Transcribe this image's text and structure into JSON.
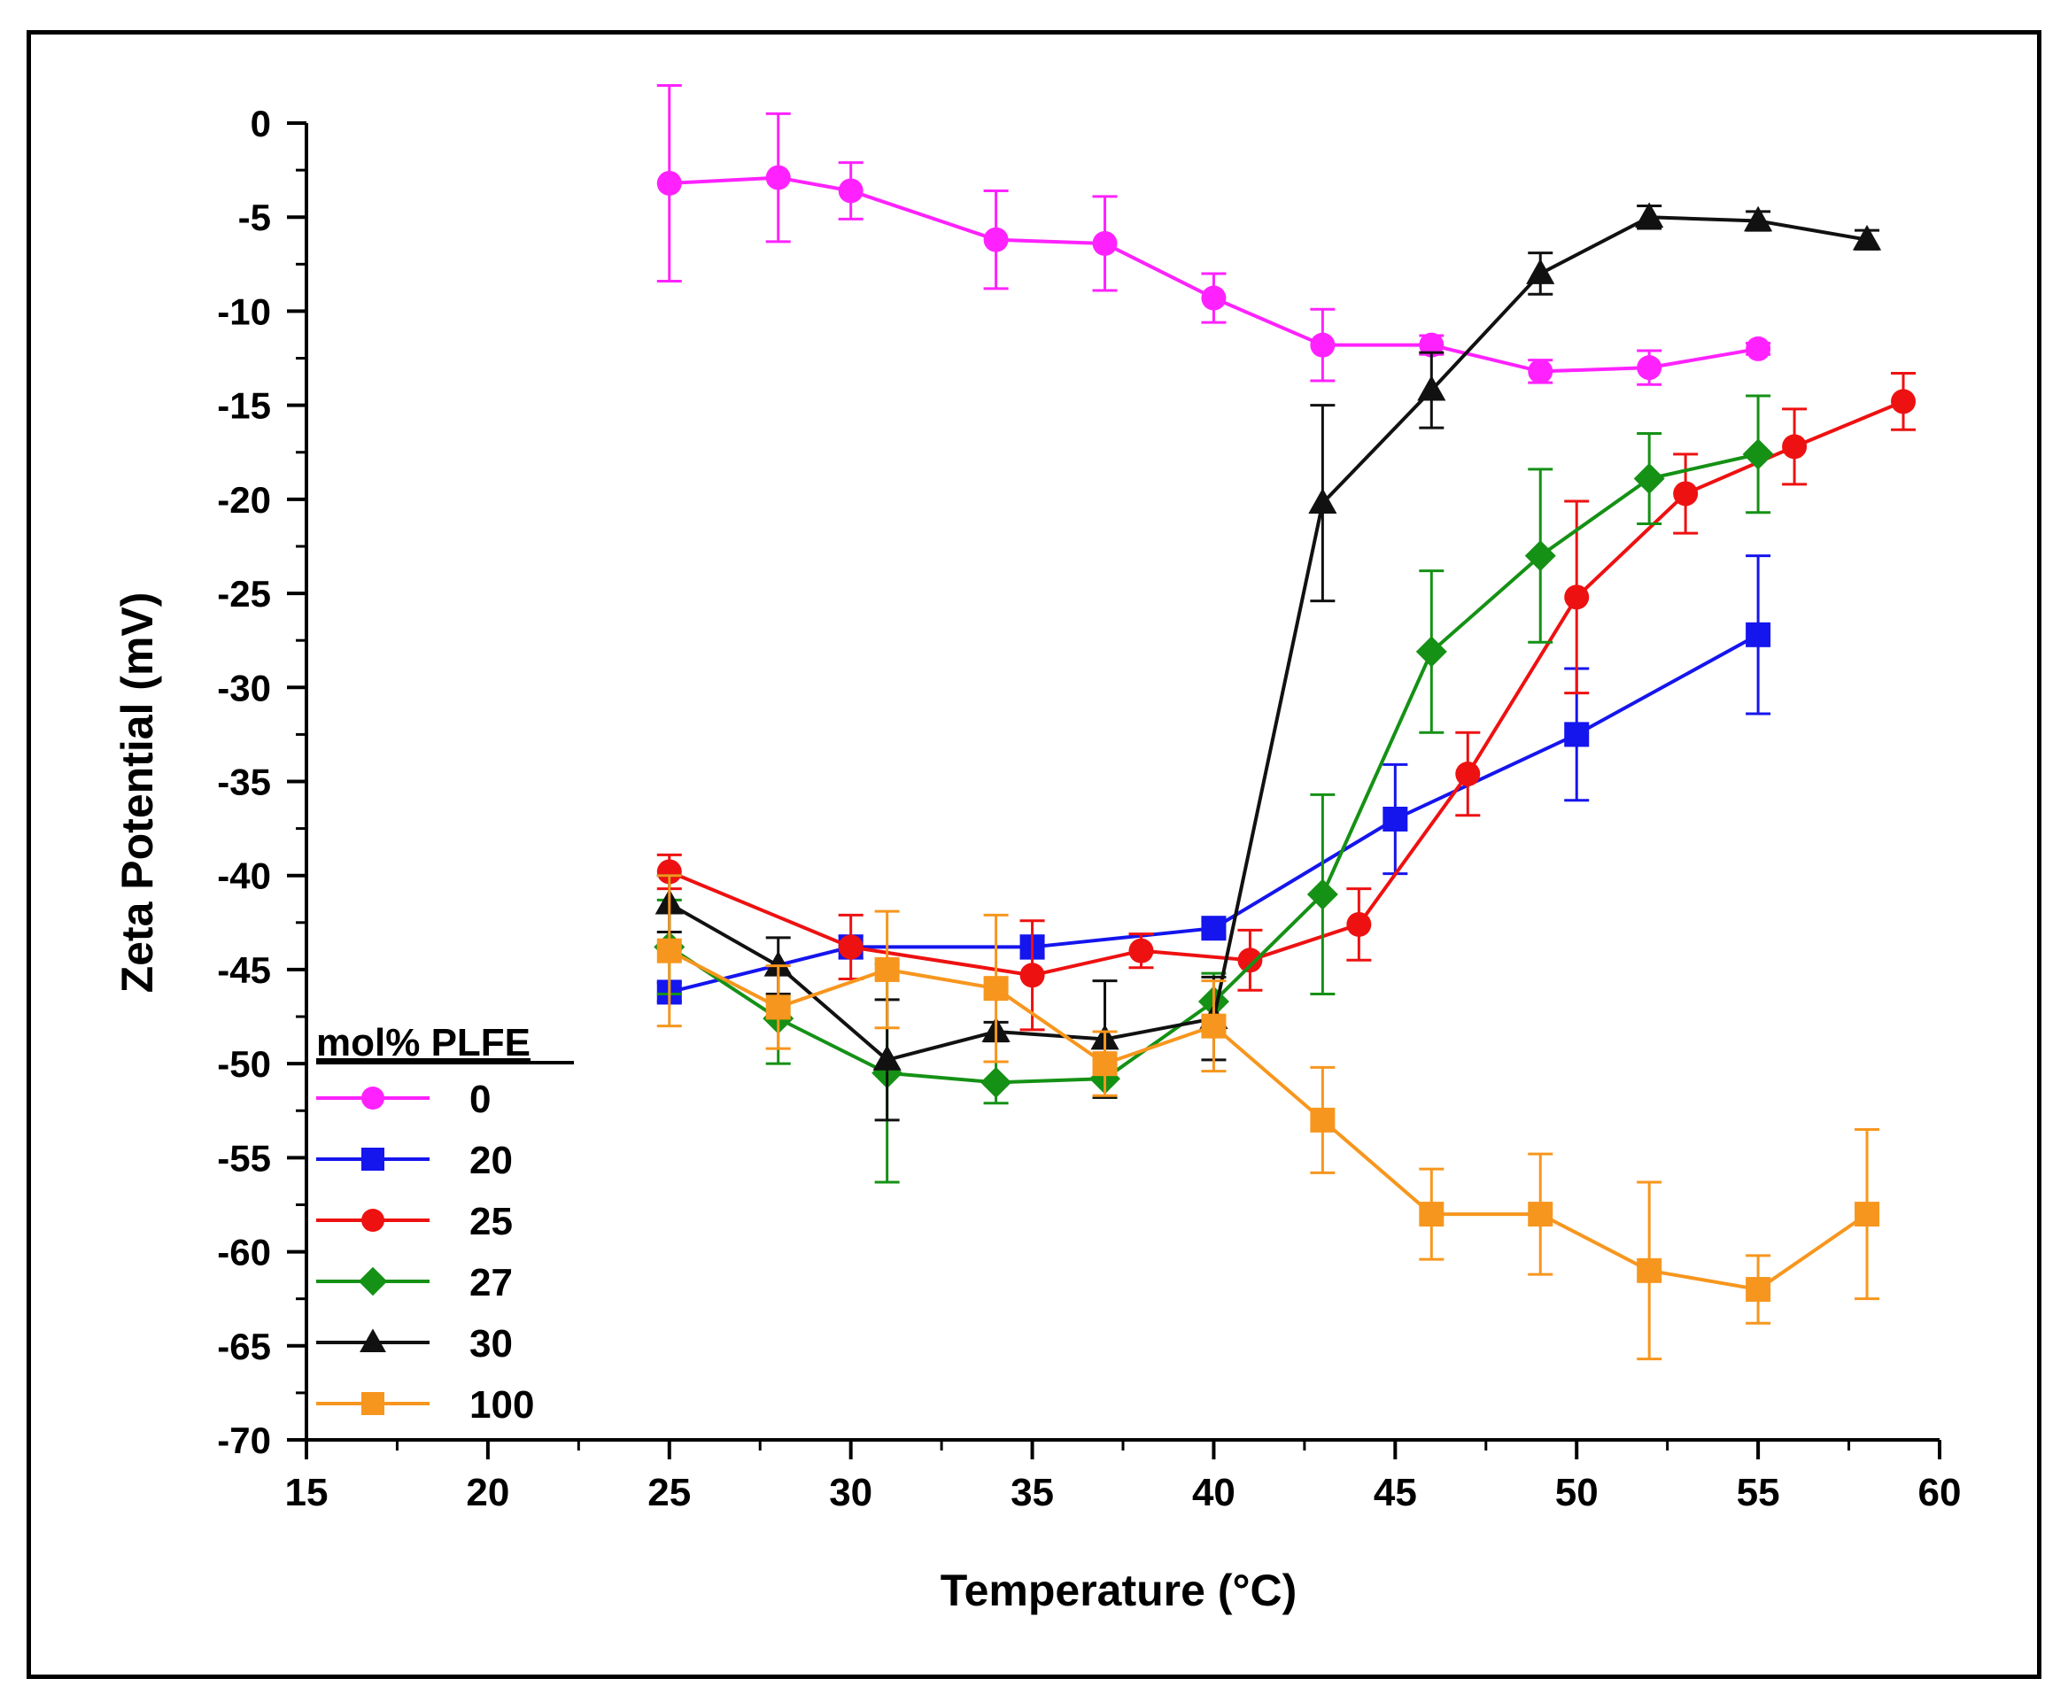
{
  "chart_data": {
    "type": "line",
    "xlabel": "Temperature (°C)",
    "ylabel": "Zeta Potential (mV)",
    "xlim": [
      15,
      60
    ],
    "ylim": [
      -70,
      0
    ],
    "xticks": [
      15,
      20,
      25,
      30,
      35,
      40,
      45,
      50,
      55,
      60
    ],
    "yticks": [
      0,
      -5,
      -10,
      -15,
      -20,
      -25,
      -30,
      -35,
      -40,
      -45,
      -50,
      -55,
      -60,
      -65,
      -70
    ],
    "grid": false,
    "legend_title": "mol% PLFE",
    "legend_position": "bottom-left",
    "series": [
      {
        "name": "0",
        "color": "#ff22ff",
        "marker": "circle",
        "points": [
          {
            "x": 25,
            "y": -3.2,
            "err": 5.2
          },
          {
            "x": 28,
            "y": -2.9,
            "err": 3.4
          },
          {
            "x": 30,
            "y": -3.6,
            "err": 1.5
          },
          {
            "x": 34,
            "y": -6.2,
            "err": 2.6
          },
          {
            "x": 37,
            "y": -6.4,
            "err": 2.5
          },
          {
            "x": 40,
            "y": -9.3,
            "err": 1.3
          },
          {
            "x": 43,
            "y": -11.8,
            "err": 1.9
          },
          {
            "x": 46,
            "y": -11.8,
            "err": 0.5
          },
          {
            "x": 49,
            "y": -13.2,
            "err": 0.6
          },
          {
            "x": 52,
            "y": -13.0,
            "err": 0.9
          },
          {
            "x": 55,
            "y": -12.0,
            "err": 0.3
          }
        ]
      },
      {
        "name": "20",
        "color": "#1515ee",
        "marker": "square",
        "points": [
          {
            "x": 25,
            "y": -46.2,
            "err": 0.5
          },
          {
            "x": 30,
            "y": -43.8,
            "err": 0.6
          },
          {
            "x": 35,
            "y": -43.8,
            "err": 0.6
          },
          {
            "x": 40,
            "y": -42.8,
            "err": 0.4
          },
          {
            "x": 45,
            "y": -37.0,
            "err": 2.9
          },
          {
            "x": 50,
            "y": -32.5,
            "err": 3.5
          },
          {
            "x": 55,
            "y": -27.2,
            "err": 4.2
          }
        ]
      },
      {
        "name": "25",
        "color": "#ee1111",
        "marker": "circle",
        "points": [
          {
            "x": 25,
            "y": -39.8,
            "err": 0.9
          },
          {
            "x": 30,
            "y": -43.8,
            "err": 1.7
          },
          {
            "x": 35,
            "y": -45.3,
            "err": 2.9
          },
          {
            "x": 38,
            "y": -44.0,
            "err": 0.9
          },
          {
            "x": 41,
            "y": -44.5,
            "err": 1.6
          },
          {
            "x": 44,
            "y": -42.6,
            "err": 1.9
          },
          {
            "x": 47,
            "y": -34.6,
            "err": 2.2
          },
          {
            "x": 50,
            "y": -25.2,
            "err": 5.1
          },
          {
            "x": 53,
            "y": -19.7,
            "err": 2.1
          },
          {
            "x": 56,
            "y": -17.2,
            "err": 2.0
          },
          {
            "x": 59,
            "y": -14.8,
            "err": 1.5
          }
        ]
      },
      {
        "name": "27",
        "color": "#159115",
        "marker": "diamond",
        "points": [
          {
            "x": 25,
            "y": -43.8,
            "err": 2.5
          },
          {
            "x": 28,
            "y": -47.6,
            "err": 2.4
          },
          {
            "x": 31,
            "y": -50.5,
            "err": 5.8
          },
          {
            "x": 34,
            "y": -51.0,
            "err": 1.1
          },
          {
            "x": 37,
            "y": -50.8,
            "err": 1.0
          },
          {
            "x": 40,
            "y": -46.7,
            "err": 1.5
          },
          {
            "x": 43,
            "y": -41.0,
            "err": 5.3
          },
          {
            "x": 46,
            "y": -28.1,
            "err": 4.3
          },
          {
            "x": 49,
            "y": -23.0,
            "err": 4.6
          },
          {
            "x": 52,
            "y": -18.9,
            "err": 2.4
          },
          {
            "x": 55,
            "y": -17.6,
            "err": 3.1
          }
        ]
      },
      {
        "name": "30",
        "color": "#111111",
        "marker": "triangle",
        "points": [
          {
            "x": 25,
            "y": -41.5,
            "err": 1.5
          },
          {
            "x": 28,
            "y": -44.8,
            "err": 1.5
          },
          {
            "x": 31,
            "y": -49.8,
            "err": 3.2
          },
          {
            "x": 34,
            "y": -48.3,
            "err": 0.5
          },
          {
            "x": 37,
            "y": -48.7,
            "err": 3.1
          },
          {
            "x": 40,
            "y": -47.6,
            "err": 2.2
          },
          {
            "x": 43,
            "y": -20.2,
            "err": 5.2
          },
          {
            "x": 46,
            "y": -14.2,
            "err": 2.0
          },
          {
            "x": 49,
            "y": -8.0,
            "err": 1.1
          },
          {
            "x": 52,
            "y": -5.0,
            "err": 0.6
          },
          {
            "x": 55,
            "y": -5.2,
            "err": 0.5
          },
          {
            "x": 58,
            "y": -6.2,
            "err": 0.5
          }
        ]
      },
      {
        "name": "100",
        "color": "#f7961e",
        "marker": "square",
        "points": [
          {
            "x": 25,
            "y": -44.0,
            "err": 4.0
          },
          {
            "x": 28,
            "y": -47.0,
            "err": 2.2
          },
          {
            "x": 31,
            "y": -45.0,
            "err": 3.1
          },
          {
            "x": 34,
            "y": -46.0,
            "err": 3.9
          },
          {
            "x": 37,
            "y": -50.0,
            "err": 1.7
          },
          {
            "x": 40,
            "y": -48.0,
            "err": 2.4
          },
          {
            "x": 43,
            "y": -53.0,
            "err": 2.8
          },
          {
            "x": 46,
            "y": -58.0,
            "err": 2.4
          },
          {
            "x": 49,
            "y": -58.0,
            "err": 3.2
          },
          {
            "x": 52,
            "y": -61.0,
            "err": 4.7
          },
          {
            "x": 55,
            "y": -62.0,
            "err": 1.8
          },
          {
            "x": 58,
            "y": -58.0,
            "err": 4.5
          }
        ]
      }
    ]
  }
}
